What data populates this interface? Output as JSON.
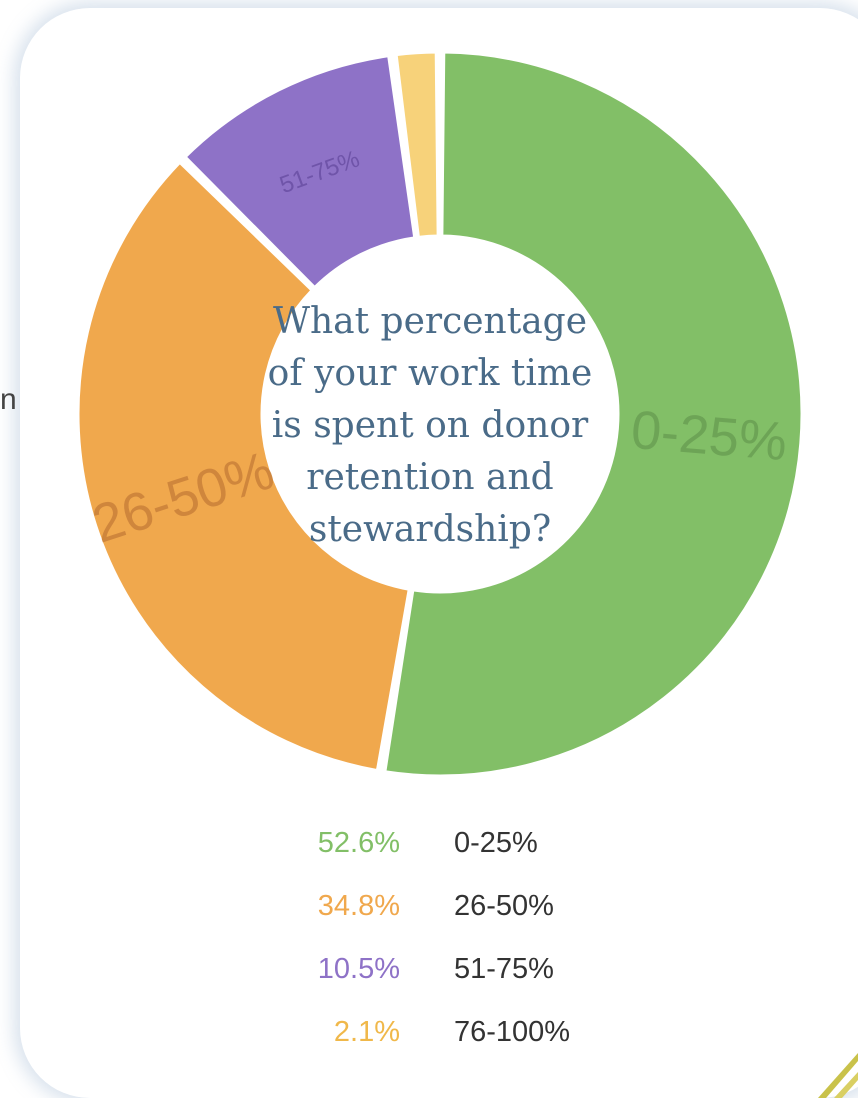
{
  "side_fragment": "n",
  "chart_data": {
    "type": "pie",
    "title": "What percentage\nof your work time\nis spent on donor\nretention and\nstewardship?",
    "categories": [
      "0-25%",
      "26-50%",
      "51-75%",
      "76-100%"
    ],
    "values": [
      52.6,
      34.8,
      10.5,
      2.1
    ],
    "value_labels": [
      "52.6%",
      "34.8%",
      "10.5%",
      "2.1%"
    ],
    "segment_labels": [
      "0-25%",
      "26-50%",
      "51-75%",
      ""
    ],
    "colors": [
      "#82bf67",
      "#f0a84d",
      "#8e72c7",
      "#f7d27a"
    ],
    "segment_label_colors": [
      "#6a9f53",
      "#c9803a",
      "#6a4fa3",
      "#d8a94a"
    ]
  }
}
